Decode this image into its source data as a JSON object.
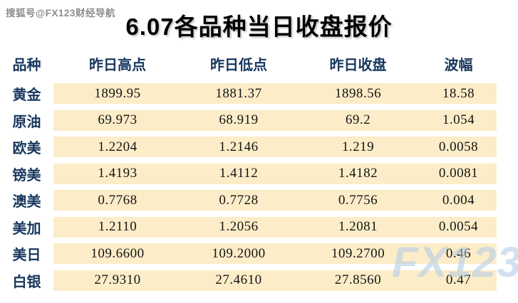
{
  "page": {
    "watermark_top_left": "搜狐号@FX123财经导航",
    "watermark_bottom_right": "FX123",
    "title": "6.07各品种当日收盘报价"
  },
  "table": {
    "headers": [
      "品种",
      "昨日高点",
      "昨日低点",
      "昨日收盘",
      "波幅"
    ],
    "rows": [
      {
        "label": "黄金",
        "high": "1899.95",
        "low": "1881.37",
        "close": "1898.56",
        "range": "18.58"
      },
      {
        "label": "原油",
        "high": "69.973",
        "low": "68.919",
        "close": "69.2",
        "range": "1.054"
      },
      {
        "label": "欧美",
        "high": "1.2204",
        "low": "1.2146",
        "close": "1.219",
        "range": "0.0058"
      },
      {
        "label": "镑美",
        "high": "1.4193",
        "low": "1.4112",
        "close": "1.4182",
        "range": "0.0081"
      },
      {
        "label": "澳美",
        "high": "0.7768",
        "low": "0.7728",
        "close": "0.7756",
        "range": "0.004"
      },
      {
        "label": "美加",
        "high": "1.2110",
        "low": "1.2056",
        "close": "1.2081",
        "range": "0.0054"
      },
      {
        "label": "美日",
        "high": "109.6600",
        "low": "109.2000",
        "close": "109.2700",
        "range": "0.46"
      },
      {
        "label": "白银",
        "high": "27.9310",
        "low": "27.4610",
        "close": "27.8560",
        "range": "0.47"
      }
    ]
  },
  "colors": {
    "page_bg": "#ffffff",
    "band_bg": "#fcedc8",
    "header_text": "#17375e",
    "label_text": "#17375e",
    "value_text": "#151515",
    "title_text": "#000000",
    "watermark_gray": "#8c8c8c",
    "watermark_blue": "#aecae7"
  }
}
